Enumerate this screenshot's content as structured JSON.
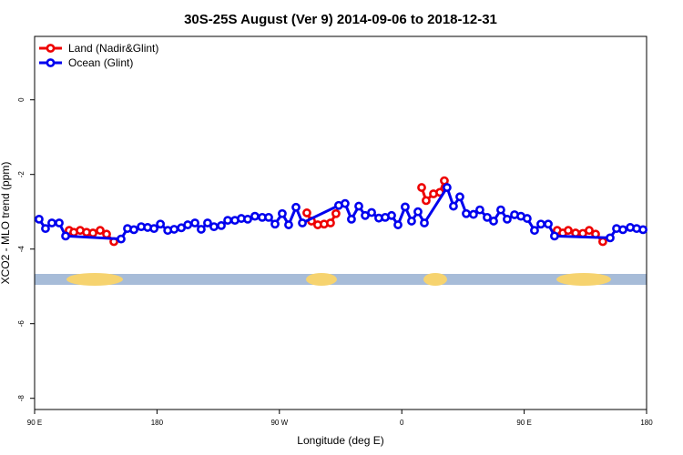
{
  "chart_data": {
    "type": "line",
    "title": "30S-25S August (Ver 9)   2014-09-06 to 2018-12-31",
    "x_label": "Longitude (deg E)",
    "y_label": "XCO2 - MLO trend (ppm)",
    "xlim": [
      90,
      540
    ],
    "ylim": [
      -8.3,
      1.7
    ],
    "xticks": [
      {
        "value": 90,
        "label": "90 E"
      },
      180,
      {
        "value": 270,
        "label": "90 W"
      },
      {
        "value": 360,
        "label": "0"
      },
      {
        "value": 450,
        "label": "90 E"
      },
      {
        "value": 540,
        "label": "180"
      }
    ],
    "yticks": [
      0,
      -2,
      -4,
      -6,
      -8
    ],
    "legend": "top-left",
    "series": [
      {
        "name": "Land (Nadir&Glint)",
        "color": "#ee0000",
        "x": [
          115.4,
          118.8,
          123.5,
          128.2,
          132.9,
          138.2,
          142.9,
          148.3,
          null,
          290.2,
          293.6,
          298.2,
          302.9,
          307.6,
          311.6,
          null,
          374.6,
          377.9,
          383.3,
          388.0,
          391.3,
          null,
          474.3,
          478.4,
          482.4,
          487.8,
          493.1,
          497.8,
          502.5,
          507.8
        ],
        "values": [
          -3.5,
          -3.55,
          -3.5,
          -3.55,
          -3.57,
          -3.5,
          -3.6,
          -3.8,
          null,
          -3.03,
          -3.25,
          -3.35,
          -3.33,
          -3.3,
          -3.05,
          null,
          -2.35,
          -2.7,
          -2.52,
          -2.48,
          -2.17,
          null,
          -3.5,
          -3.57,
          -3.5,
          -3.57,
          -3.58,
          -3.5,
          -3.6,
          -3.8
        ]
      },
      {
        "name": "Ocean (Glint)",
        "color": "#0000ee",
        "x": [
          93.3,
          98.0,
          102.7,
          108.1,
          112.8,
          153.6,
          158.3,
          163.0,
          168.4,
          173.1,
          177.8,
          182.5,
          187.9,
          192.6,
          197.9,
          202.6,
          207.9,
          212.5,
          217.2,
          221.9,
          227.3,
          232.0,
          237.3,
          242.0,
          246.7,
          252.0,
          257.4,
          262.1,
          266.8,
          272.1,
          276.8,
          282.2,
          286.9,
          313.6,
          318.3,
          323.0,
          328.4,
          333.1,
          337.8,
          343.1,
          347.8,
          352.5,
          357.2,
          362.5,
          367.2,
          371.9,
          376.6,
          393.3,
          398.0,
          402.7,
          407.4,
          412.7,
          417.4,
          422.8,
          427.5,
          432.8,
          437.5,
          442.9,
          447.6,
          452.2,
          457.6,
          462.3,
          467.7,
          472.3,
          513.2,
          517.9,
          522.6,
          528.0,
          532.7,
          537.4
        ],
        "values": [
          -3.2,
          -3.45,
          -3.3,
          -3.3,
          -3.65,
          -3.73,
          -3.45,
          -3.48,
          -3.4,
          -3.42,
          -3.45,
          -3.33,
          -3.5,
          -3.47,
          -3.43,
          -3.35,
          -3.3,
          -3.47,
          -3.3,
          -3.4,
          -3.37,
          -3.23,
          -3.23,
          -3.18,
          -3.2,
          -3.12,
          -3.15,
          -3.15,
          -3.33,
          -3.05,
          -3.35,
          -2.88,
          -3.3,
          -2.83,
          -2.78,
          -3.2,
          -2.85,
          -3.1,
          -3.02,
          -3.17,
          -3.15,
          -3.1,
          -3.35,
          -2.87,
          -3.25,
          -3.0,
          -3.3,
          -2.35,
          -2.85,
          -2.6,
          -3.05,
          -3.07,
          -2.95,
          -3.15,
          -3.25,
          -2.95,
          -3.2,
          -3.08,
          -3.12,
          -3.18,
          -3.5,
          -3.33,
          -3.33,
          -3.65,
          -3.7,
          -3.45,
          -3.48,
          -3.42,
          -3.45,
          -3.48
        ]
      }
    ]
  }
}
